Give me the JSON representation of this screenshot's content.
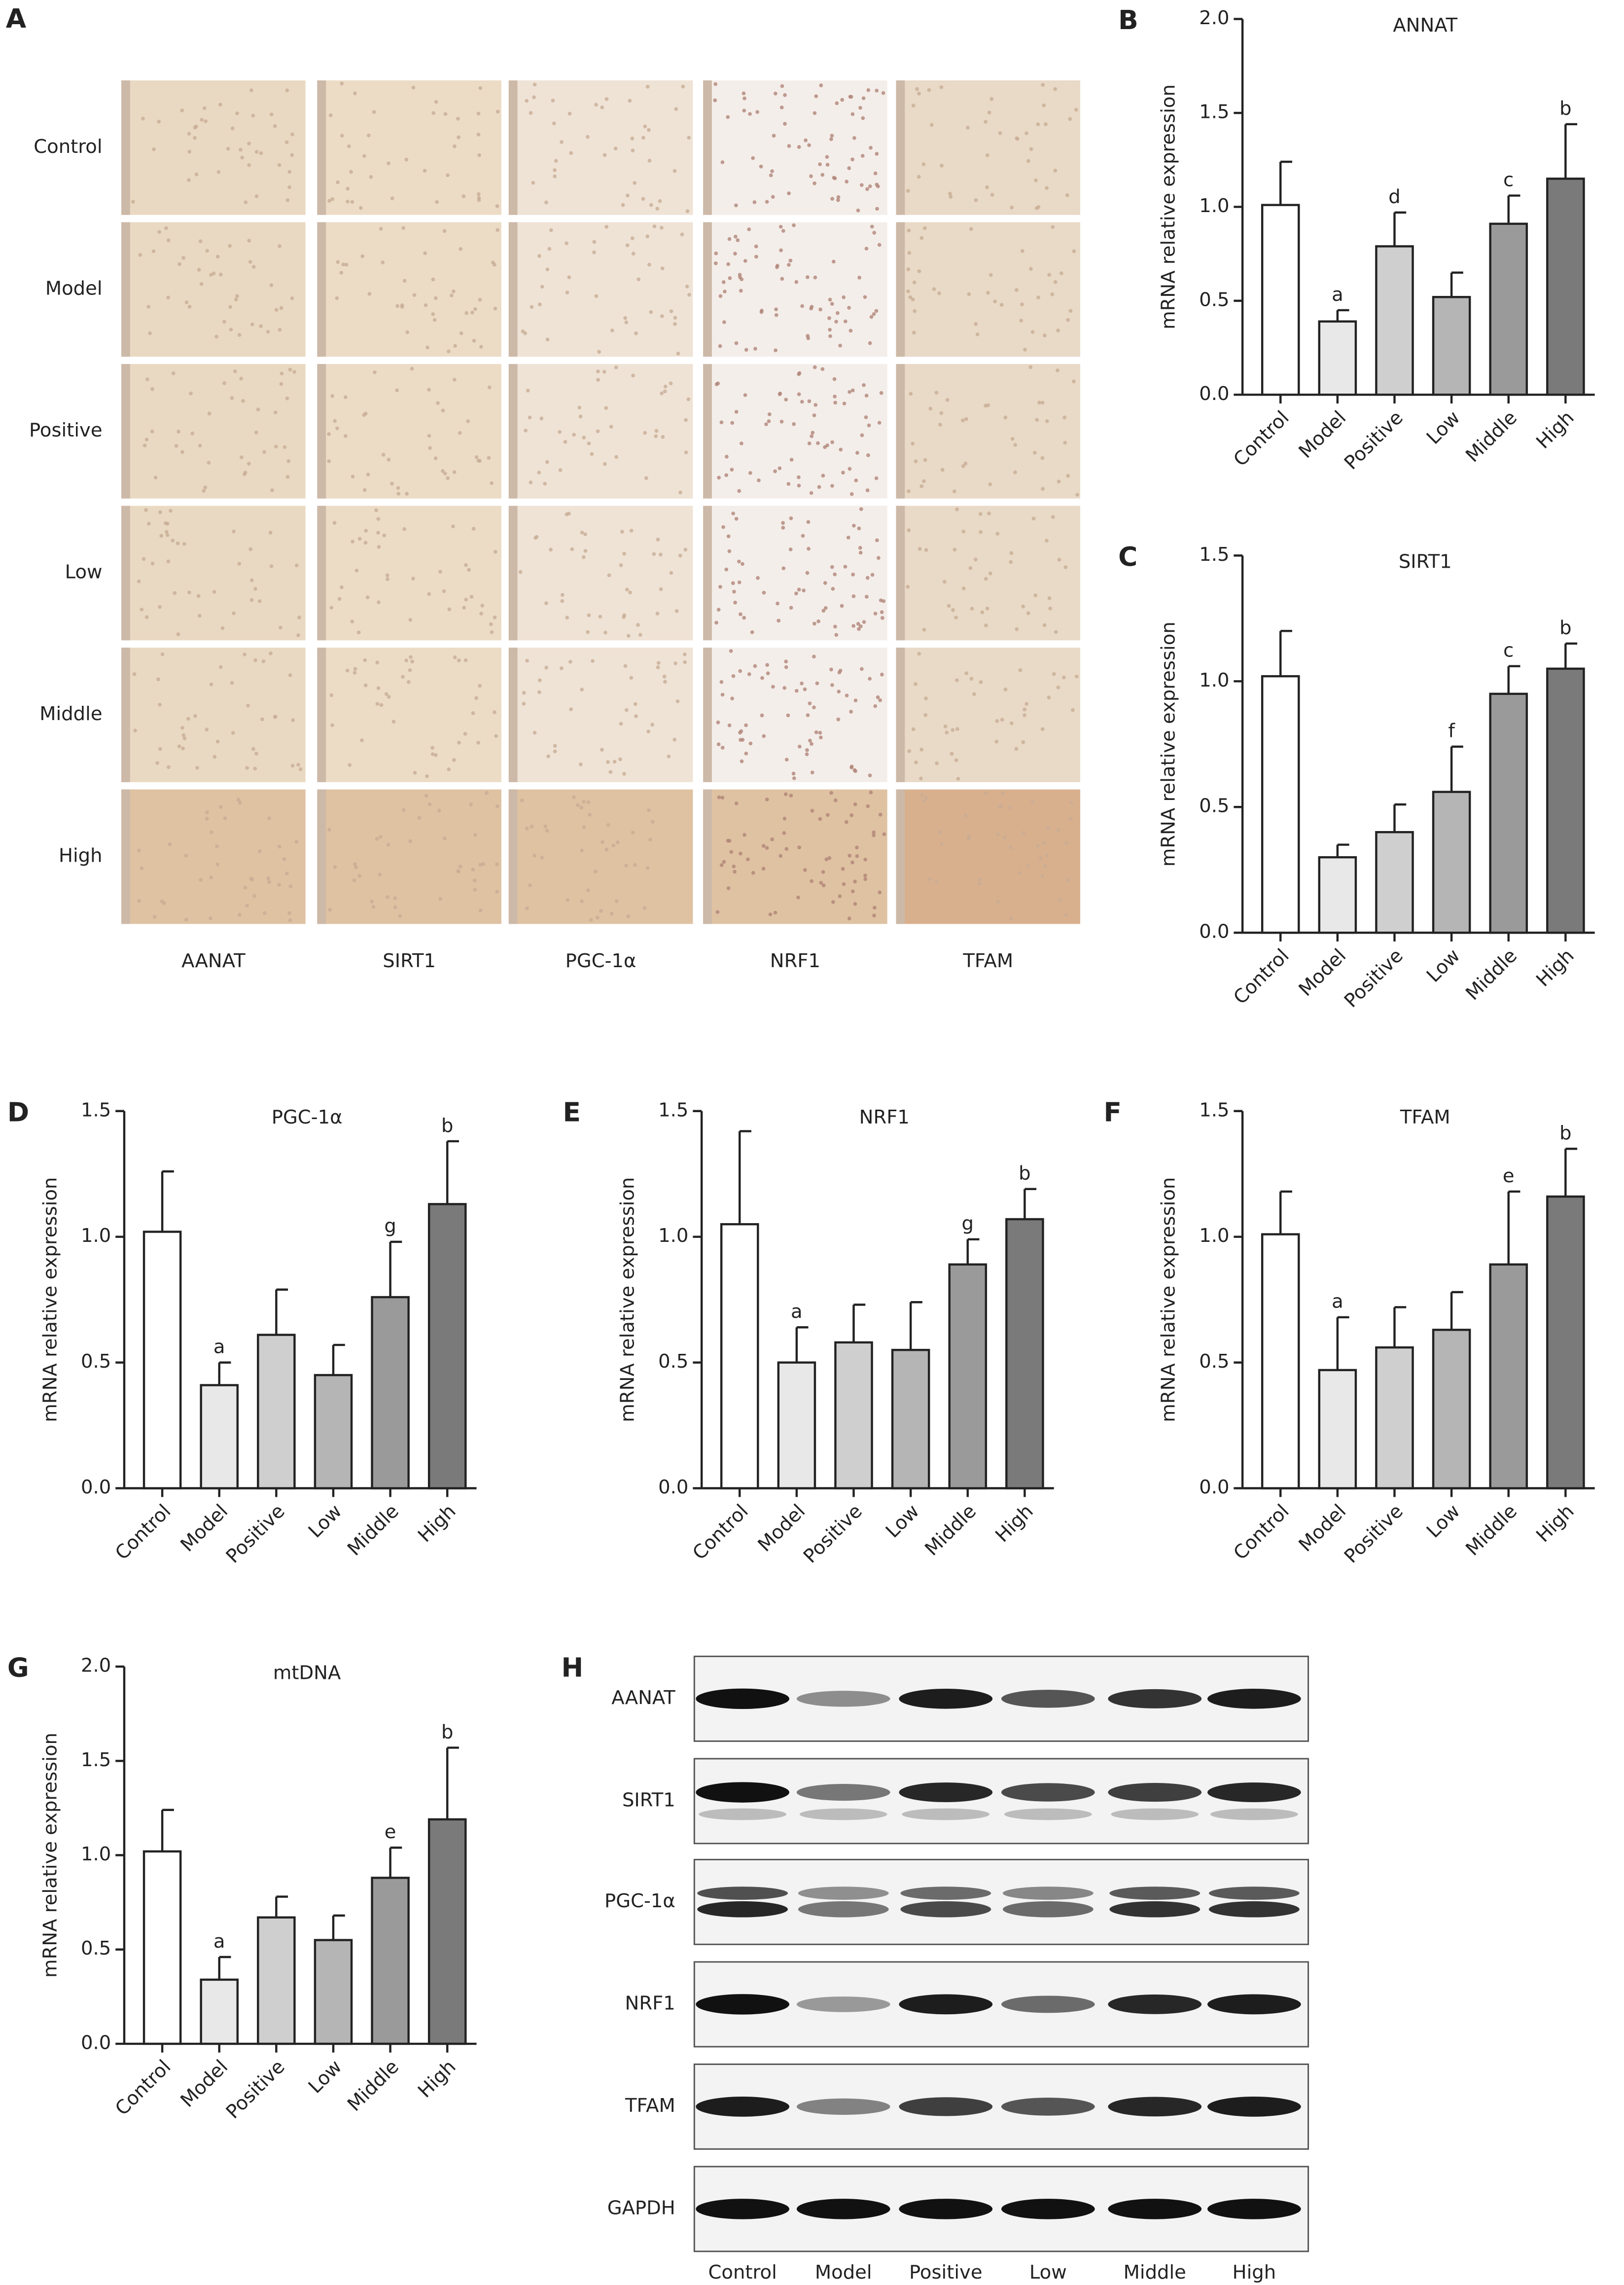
{
  "panel_a": {
    "letter": "A",
    "rows": [
      "Control",
      "Model",
      "Positive",
      "Low",
      "Middle",
      "High"
    ],
    "columns": [
      "AANAT",
      "SIRT1",
      "PGC-1α",
      "NRF1",
      "TFAM"
    ]
  },
  "chart_data": [
    {
      "type": "bar",
      "letter": "B",
      "title": "ANNAT",
      "ylabel": "mRNA relative expression",
      "categories": [
        "Control",
        "Model",
        "Positive",
        "Low",
        "Middle",
        "High"
      ],
      "values": [
        1.01,
        0.39,
        0.79,
        0.52,
        0.91,
        1.15
      ],
      "errors": [
        0.23,
        0.06,
        0.18,
        0.13,
        0.15,
        0.29
      ],
      "annotations": [
        null,
        "a",
        "d",
        null,
        "c",
        "b"
      ],
      "colors": [
        "#ffffff",
        "#e8e8e8",
        "#cfcfcf",
        "#b5b5b5",
        "#9a9a9a",
        "#7a7a7a"
      ],
      "ylim": [
        0,
        2
      ],
      "yticks": [
        {
          "value": 0,
          "label": "0.0"
        },
        0.5,
        {
          "value": 1,
          "label": "1.0"
        },
        1.5,
        {
          "value": 2,
          "label": "2.0"
        }
      ]
    },
    {
      "type": "bar",
      "letter": "C",
      "title": "SIRT1",
      "ylabel": "mRNA relative expression",
      "categories": [
        "Control",
        "Model",
        "Positive",
        "Low",
        "Middle",
        "High"
      ],
      "values": [
        1.02,
        0.3,
        0.4,
        0.56,
        0.95,
        1.05
      ],
      "errors": [
        0.18,
        0.05,
        0.11,
        0.18,
        0.11,
        0.1
      ],
      "annotations": [
        null,
        null,
        null,
        "f",
        "c",
        "b"
      ],
      "colors": [
        "#ffffff",
        "#e8e8e8",
        "#cfcfcf",
        "#b5b5b5",
        "#9a9a9a",
        "#7a7a7a"
      ],
      "ylim": [
        0,
        1.5
      ],
      "yticks": [
        {
          "value": 0,
          "label": "0.0"
        },
        0.5,
        {
          "value": 1,
          "label": "1.0"
        },
        1.5
      ]
    },
    {
      "type": "bar",
      "letter": "D",
      "title": "PGC-1α",
      "ylabel": "mRNA relative expression",
      "categories": [
        "Control",
        "Model",
        "Positive",
        "Low",
        "Middle",
        "High"
      ],
      "values": [
        1.02,
        0.41,
        0.61,
        0.45,
        0.76,
        1.13
      ],
      "errors": [
        0.24,
        0.09,
        0.18,
        0.12,
        0.22,
        0.25
      ],
      "annotations": [
        null,
        "a",
        null,
        null,
        "g",
        "b"
      ],
      "colors": [
        "#ffffff",
        "#e8e8e8",
        "#cfcfcf",
        "#b5b5b5",
        "#9a9a9a",
        "#7a7a7a"
      ],
      "ylim": [
        0,
        1.5
      ],
      "yticks": [
        {
          "value": 0,
          "label": "0.0"
        },
        0.5,
        {
          "value": 1,
          "label": "1.0"
        },
        1.5
      ]
    },
    {
      "type": "bar",
      "letter": "E",
      "title": "NRF1",
      "ylabel": "mRNA relative expression",
      "categories": [
        "Control",
        "Model",
        "Positive",
        "Low",
        "Middle",
        "High"
      ],
      "values": [
        1.05,
        0.5,
        0.58,
        0.55,
        0.89,
        1.07
      ],
      "errors": [
        0.37,
        0.14,
        0.15,
        0.19,
        0.1,
        0.12
      ],
      "annotations": [
        null,
        "a",
        null,
        null,
        "g",
        "b"
      ],
      "colors": [
        "#ffffff",
        "#e8e8e8",
        "#cfcfcf",
        "#b5b5b5",
        "#9a9a9a",
        "#7a7a7a"
      ],
      "ylim": [
        0,
        1.5
      ],
      "yticks": [
        {
          "value": 0,
          "label": "0.0"
        },
        0.5,
        {
          "value": 1,
          "label": "1.0"
        },
        1.5
      ]
    },
    {
      "type": "bar",
      "letter": "F",
      "title": "TFAM",
      "ylabel": "mRNA relative expression",
      "categories": [
        "Control",
        "Model",
        "Positive",
        "Low",
        "Middle",
        "High"
      ],
      "values": [
        1.01,
        0.47,
        0.56,
        0.63,
        0.89,
        1.16
      ],
      "errors": [
        0.17,
        0.21,
        0.16,
        0.15,
        0.29,
        0.19
      ],
      "annotations": [
        null,
        "a",
        null,
        null,
        "e",
        "b"
      ],
      "colors": [
        "#ffffff",
        "#e8e8e8",
        "#cfcfcf",
        "#b5b5b5",
        "#9a9a9a",
        "#7a7a7a"
      ],
      "ylim": [
        0,
        1.5
      ],
      "yticks": [
        {
          "value": 0,
          "label": "0.0"
        },
        0.5,
        {
          "value": 1,
          "label": "1.0"
        },
        1.5
      ]
    },
    {
      "type": "bar",
      "letter": "G",
      "title": "mtDNA",
      "ylabel": "mRNA relative expression",
      "categories": [
        "Control",
        "Model",
        "Positive",
        "Low",
        "Middle",
        "High"
      ],
      "values": [
        1.02,
        0.34,
        0.67,
        0.55,
        0.88,
        1.19
      ],
      "errors": [
        0.22,
        0.12,
        0.11,
        0.13,
        0.16,
        0.38
      ],
      "annotations": [
        null,
        "a",
        null,
        null,
        "e",
        "b"
      ],
      "colors": [
        "#ffffff",
        "#e8e8e8",
        "#cfcfcf",
        "#b5b5b5",
        "#9a9a9a",
        "#7a7a7a"
      ],
      "ylim": [
        0,
        2
      ],
      "yticks": [
        {
          "value": 0,
          "label": "0.0"
        },
        0.5,
        {
          "value": 1,
          "label": "1.0"
        },
        1.5,
        {
          "value": 2,
          "label": "2.0"
        }
      ]
    }
  ],
  "panel_h": {
    "letter": "H",
    "proteins": [
      "AANAT",
      "SIRT1",
      "PGC-1α",
      "NRF1",
      "TFAM",
      "GAPDH"
    ],
    "lanes": [
      "Control",
      "Model",
      "Positive",
      "Low",
      "Middle",
      "High"
    ]
  }
}
